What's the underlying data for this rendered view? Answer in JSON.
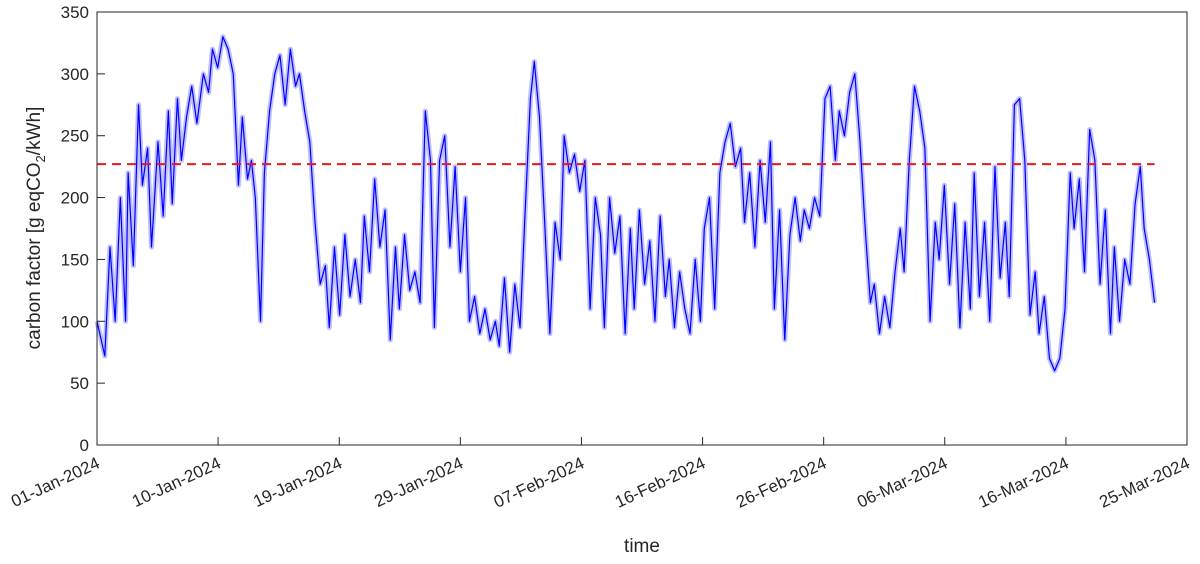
{
  "chart_data": {
    "type": "line",
    "xlabel": "time",
    "ylabel": [
      "carbon factor [g eqCO",
      "2",
      "/kWh]"
    ],
    "xlim": [
      0,
      84
    ],
    "xticks": [
      {
        "value": 0,
        "label": "01-Jan-2024"
      },
      {
        "value": 9.33,
        "label": "10-Jan-2024"
      },
      {
        "value": 18.67,
        "label": "19-Jan-2024"
      },
      {
        "value": 28,
        "label": "29-Jan-2024"
      },
      {
        "value": 37.33,
        "label": "07-Feb-2024"
      },
      {
        "value": 46.67,
        "label": "16-Feb-2024"
      },
      {
        "value": 56,
        "label": "26-Feb-2024"
      },
      {
        "value": 65.33,
        "label": "06-Mar-2024"
      },
      {
        "value": 74.67,
        "label": "16-Mar-2024"
      },
      {
        "value": 84,
        "label": "25-Mar-2024"
      }
    ],
    "ylim": [
      0,
      350
    ],
    "yticks": [
      0,
      50,
      100,
      150,
      200,
      250,
      300,
      350
    ],
    "reference": {
      "value": 227,
      "color": "#e8191f",
      "dashed": true
    },
    "x": [
      0,
      0.6,
      1,
      1.4,
      1.8,
      2.2,
      2.4,
      2.8,
      3.2,
      3.5,
      3.9,
      4.2,
      4.7,
      5.1,
      5.5,
      5.8,
      6.2,
      6.5,
      6.9,
      7.3,
      7.7,
      8.2,
      8.6,
      8.9,
      9.3,
      9.7,
      10.1,
      10.5,
      10.9,
      11.2,
      11.6,
      11.9,
      12.2,
      12.6,
      12.9,
      13.3,
      13.7,
      14.1,
      14.5,
      14.9,
      15.3,
      15.6,
      16,
      16.4,
      16.8,
      17.2,
      17.6,
      17.9,
      18.3,
      18.7,
      19.1,
      19.5,
      19.9,
      20.3,
      20.6,
      21,
      21.4,
      21.8,
      22.2,
      22.6,
      23,
      23.3,
      23.7,
      24.1,
      24.5,
      24.9,
      25.3,
      25.7,
      26,
      26.4,
      26.8,
      27.2,
      27.6,
      28,
      28.4,
      28.7,
      29.1,
      29.5,
      29.9,
      30.3,
      30.7,
      31,
      31.4,
      31.8,
      32.2,
      32.6,
      33,
      33.4,
      33.7,
      34.1,
      34.5,
      34.9,
      35.3,
      35.7,
      36,
      36.4,
      36.8,
      37.2,
      37.6,
      38,
      38.4,
      38.8,
      39.1,
      39.5,
      39.9,
      40.3,
      40.7,
      41.1,
      41.4,
      41.8,
      42.2,
      42.6,
      43,
      43.4,
      43.8,
      44.1,
      44.5,
      44.9,
      45.3,
      45.7,
      46.1,
      46.5,
      46.8,
      47.2,
      47.6,
      48,
      48.4,
      48.8,
      49.2,
      49.6,
      49.9,
      50.3,
      50.7,
      51.1,
      51.5,
      51.9,
      52.2,
      52.6,
      53,
      53.4,
      53.8,
      54.2,
      54.5,
      54.9,
      55.3,
      55.7,
      56.1,
      56.5,
      56.9,
      57.2,
      57.6,
      58,
      58.4,
      58.8,
      59.2,
      59.6,
      59.9,
      60.3,
      60.7,
      61.1,
      61.5,
      61.9,
      62.2,
      62.6,
      63,
      63.4,
      63.8,
      64.2,
      64.6,
      64.9,
      65.3,
      65.7,
      66.1,
      66.5,
      66.9,
      67.3,
      67.6,
      68,
      68.4,
      68.8,
      69.2,
      69.6,
      70,
      70.3,
      70.7,
      71.1,
      71.5,
      71.9,
      72.3,
      72.6,
      73,
      73.4,
      73.8,
      74.2,
      74.6,
      75,
      75.3,
      75.7,
      76.1,
      76.5,
      76.9,
      77.3,
      77.7,
      78.1,
      78.4,
      78.8,
      79.2,
      79.6,
      80,
      80.4,
      80.7,
      81.1,
      81.5
    ],
    "series": [
      {
        "color": "#0000ff",
        "values": [
          100,
          72,
          160,
          100,
          200,
          100,
          220,
          145,
          275,
          210,
          240,
          160,
          245,
          185,
          270,
          195,
          280,
          230,
          265,
          290,
          260,
          300,
          285,
          320,
          305,
          330,
          320,
          300,
          210,
          265,
          215,
          230,
          200,
          100,
          220,
          270,
          300,
          315,
          275,
          320,
          290,
          300,
          270,
          245,
          180,
          130,
          145,
          95,
          160,
          105,
          170,
          120,
          150,
          115,
          185,
          140,
          215,
          160,
          190,
          85,
          160,
          110,
          170,
          125,
          140,
          115,
          270,
          230,
          95,
          230,
          250,
          160,
          225,
          140,
          200,
          100,
          120,
          90,
          110,
          85,
          100,
          80,
          135,
          75,
          130,
          95,
          190,
          280,
          310,
          265,
          180,
          90,
          180,
          150,
          250,
          220,
          235,
          205,
          230,
          110,
          200,
          170,
          95,
          200,
          155,
          185,
          90,
          175,
          110,
          190,
          130,
          165,
          100,
          185,
          120,
          150,
          95,
          140,
          110,
          90,
          150,
          100,
          175,
          200,
          110,
          220,
          245,
          260,
          225,
          240,
          180,
          220,
          160,
          230,
          180,
          245,
          110,
          190,
          85,
          170,
          200,
          165,
          190,
          175,
          200,
          185,
          280,
          290,
          230,
          270,
          250,
          285,
          300,
          245,
          175,
          115,
          130,
          90,
          120,
          95,
          140,
          175,
          140,
          230,
          290,
          270,
          240,
          100,
          180,
          150,
          210,
          130,
          195,
          95,
          180,
          110,
          220,
          120,
          180,
          100,
          225,
          135,
          180,
          120,
          275,
          280,
          230,
          105,
          140,
          90,
          120,
          70,
          60,
          70,
          110,
          220,
          175,
          215,
          140,
          255,
          230,
          130,
          190,
          90,
          160,
          100,
          150,
          130,
          195,
          225,
          175,
          150,
          115
        ]
      }
    ]
  }
}
